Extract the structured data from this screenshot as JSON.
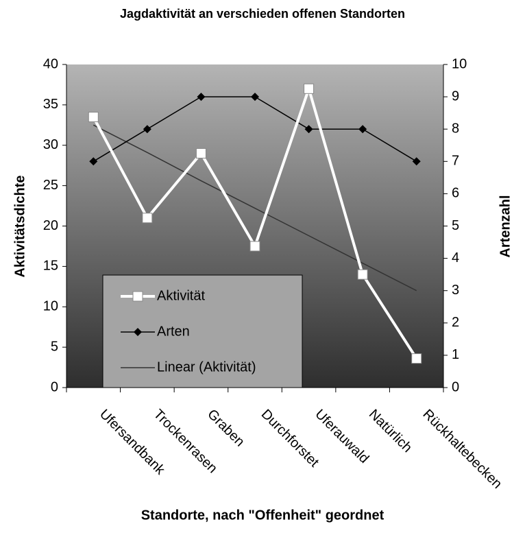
{
  "chart_data": {
    "type": "line",
    "title": "Jagdaktivität an verschieden offenen Standorten",
    "x_label": "Standorte, nach \"Offenheit\" geordnet",
    "y_label": "Aktivitätsdichte",
    "y2_label": "Artenzahl",
    "categories": [
      "Ufersandbank",
      "Trockenrasen",
      "Graben",
      "Durchforstet",
      "Uferauwald",
      "Natürlich",
      "Rückhaltebecken"
    ],
    "ylim": [
      0,
      40
    ],
    "yticks": [
      0,
      5,
      10,
      15,
      20,
      25,
      30,
      35,
      40
    ],
    "y2lim": [
      0,
      10
    ],
    "y2ticks": [
      0,
      1,
      2,
      3,
      4,
      5,
      6,
      7,
      8,
      9,
      10
    ],
    "series": [
      {
        "name": "Aktivität",
        "color": "#ffffff",
        "marker": "square",
        "values": [
          33.5,
          21,
          29,
          17.5,
          37,
          14,
          3.6
        ]
      },
      {
        "name": "Arten",
        "color": "#000000",
        "marker": "diamond",
        "axis": "y2",
        "values": [
          7,
          8,
          9,
          9,
          8,
          8,
          7
        ]
      },
      {
        "name": "Linear (Aktivität)",
        "color": "#333333",
        "marker": "none",
        "values": [
          32.5,
          29.1,
          25.6,
          22.2,
          18.8,
          15.4,
          12.0
        ]
      }
    ]
  }
}
